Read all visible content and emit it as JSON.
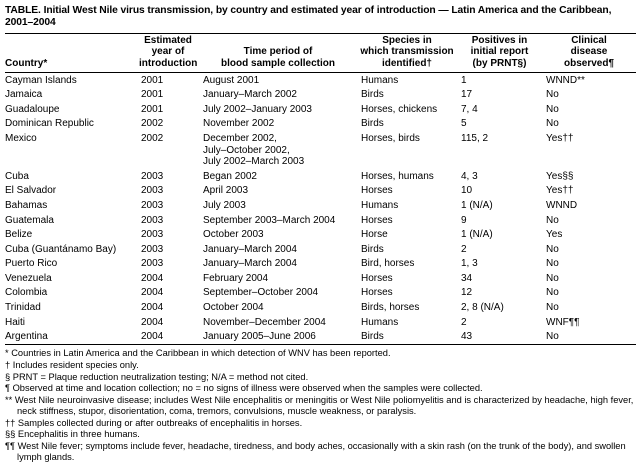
{
  "title": "TABLE. Initial West Nile virus transmission, by country and estimated year of introduction — Latin America and the Caribbean, 2001–2004",
  "table": {
    "columns": {
      "country": "Country*",
      "year": "Estimated\nyear of\nintroduction",
      "period": "Time period of\nblood sample collection",
      "species": "Species in\nwhich transmission\nidentified†",
      "positives": "Positives in\ninitial report\n(by PRNT§)",
      "clinical": "Clinical\ndisease\nobserved¶"
    },
    "rows": [
      {
        "country": "Cayman Islands",
        "year": "2001",
        "period": "August 2001",
        "species": "Humans",
        "positives": "1",
        "clinical": "WNND**"
      },
      {
        "country": "Jamaica",
        "year": "2001",
        "period": "January–March 2002",
        "species": "Birds",
        "positives": "17",
        "clinical": "No"
      },
      {
        "country": "Guadaloupe",
        "year": "2001",
        "period": "July 2002–January 2003",
        "species": "Horses, chickens",
        "positives": "7, 4",
        "clinical": "No"
      },
      {
        "country": "Dominican Republic",
        "year": "2002",
        "period": "November 2002",
        "species": "Birds",
        "positives": "5",
        "clinical": "No"
      },
      {
        "country": "Mexico",
        "year": "2002",
        "period": "December 2002,\nJuly–October 2002,\nJuly 2002–March 2003",
        "species": "Horses, birds",
        "positives": "115, 2",
        "clinical": "Yes††"
      },
      {
        "country": "Cuba",
        "year": "2003",
        "period": "Began 2002",
        "species": "Horses, humans",
        "positives": "4, 3",
        "clinical": "Yes§§"
      },
      {
        "country": "El Salvador",
        "year": "2003",
        "period": "April 2003",
        "species": "Horses",
        "positives": "10",
        "clinical": "Yes††"
      },
      {
        "country": "Bahamas",
        "year": "2003",
        "period": "July 2003",
        "species": "Humans",
        "positives": "1 (N/A)",
        "clinical": "WNND"
      },
      {
        "country": "Guatemala",
        "year": "2003",
        "period": "September 2003–March 2004",
        "species": "Horses",
        "positives": "9",
        "clinical": "No"
      },
      {
        "country": "Belize",
        "year": "2003",
        "period": "October 2003",
        "species": "Horse",
        "positives": "1 (N/A)",
        "clinical": "Yes"
      },
      {
        "country": "Cuba (Guantánamo Bay)",
        "year": "2003",
        "period": "January–March 2004",
        "species": "Birds",
        "positives": "2",
        "clinical": "No"
      },
      {
        "country": "Puerto Rico",
        "year": "2003",
        "period": "January–March 2004",
        "species": "Bird, horses",
        "positives": "1, 3",
        "clinical": "No"
      },
      {
        "country": "Venezuela",
        "year": "2004",
        "period": "February 2004",
        "species": "Horses",
        "positives": "34",
        "clinical": "No"
      },
      {
        "country": "Colombia",
        "year": "2004",
        "period": "September–October 2004",
        "species": "Horses",
        "positives": "12",
        "clinical": "No"
      },
      {
        "country": "Trinidad",
        "year": "2004",
        "period": "October 2004",
        "species": "Birds, horses",
        "positives": "2, 8 (N/A)",
        "clinical": "No"
      },
      {
        "country": "Haiti",
        "year": "2004",
        "period": "November–December 2004",
        "species": "Humans",
        "positives": "2",
        "clinical": "WNF¶¶"
      },
      {
        "country": "Argentina",
        "year": "2004",
        "period": "January 2005–June 2006",
        "species": "Birds",
        "positives": "43",
        "clinical": "No"
      }
    ]
  },
  "footnotes": [
    "* Countries in Latin America and the Caribbean in which detection of WNV has been reported.",
    "† Includes resident species only.",
    "§ PRNT = Plaque reduction neutralization testing; N/A = method not cited.",
    "¶ Observed at time and location collection; no = no signs of illness were observed when the samples were collected.",
    "** West Nile neuroinvasive disease; includes West Nile encephalitis or meningitis or West Nile poliomyelitis and is characterized by headache, high fever, neck stiffness, stupor, disorientation, coma, tremors, convulsions, muscle weakness, or paralysis.",
    "†† Samples collected during or after outbreaks of encephalitis in horses.",
    "§§ Encephalitis in three humans.",
    "¶¶ West Nile fever; symptoms include fever, headache, tiredness, and body aches, occasionally with a skin rash (on the trunk of the body), and swollen lymph glands."
  ]
}
